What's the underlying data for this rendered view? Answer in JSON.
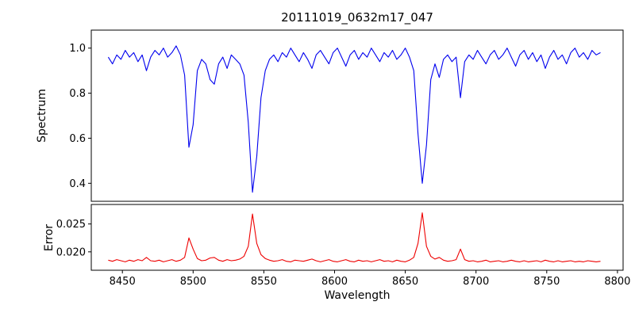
{
  "chart_data": {
    "type": "line",
    "title": "20111019_0632m17_047",
    "xlabel": "Wavelength",
    "xlim": [
      8428,
      8804
    ],
    "xticks": [
      8450,
      8500,
      8550,
      8600,
      8650,
      8700,
      8750,
      8800
    ],
    "grid": false,
    "legend": "none",
    "panels": [
      {
        "name": "spectrum",
        "ylabel": "Spectrum",
        "color": "#0000ee",
        "ylim": [
          0.32,
          1.08
        ],
        "yticks": [
          0.4,
          0.6,
          0.8,
          1.0
        ],
        "ytick_labels": [
          "0.4",
          "0.6",
          "0.8",
          "1.0"
        ]
      },
      {
        "name": "error",
        "ylabel": "Error",
        "color": "#ee0000",
        "ylim": [
          0.0167,
          0.0285
        ],
        "yticks": [
          0.02,
          0.025
        ],
        "ytick_labels": [
          "0.020",
          "0.025"
        ]
      }
    ],
    "absorption_line_centers": [
      8498,
      8542,
      8662
    ],
    "x": [
      8440,
      8443,
      8446,
      8449,
      8452,
      8455,
      8458,
      8461,
      8464,
      8467,
      8470,
      8473,
      8476,
      8479,
      8482,
      8485,
      8488,
      8491,
      8494,
      8497,
      8500,
      8503,
      8506,
      8509,
      8512,
      8515,
      8518,
      8521,
      8524,
      8527,
      8530,
      8533,
      8536,
      8539,
      8542,
      8545,
      8548,
      8551,
      8554,
      8557,
      8560,
      8563,
      8566,
      8569,
      8572,
      8575,
      8578,
      8581,
      8584,
      8587,
      8590,
      8593,
      8596,
      8599,
      8602,
      8605,
      8608,
      8611,
      8614,
      8617,
      8620,
      8623,
      8626,
      8629,
      8632,
      8635,
      8638,
      8641,
      8644,
      8647,
      8650,
      8653,
      8656,
      8659,
      8662,
      8665,
      8668,
      8671,
      8674,
      8677,
      8680,
      8683,
      8686,
      8689,
      8692,
      8695,
      8698,
      8701,
      8704,
      8707,
      8710,
      8713,
      8716,
      8719,
      8722,
      8725,
      8728,
      8731,
      8734,
      8737,
      8740,
      8743,
      8746,
      8749,
      8752,
      8755,
      8758,
      8761,
      8764,
      8767,
      8770,
      8773,
      8776,
      8779,
      8782,
      8785,
      8788
    ],
    "series": [
      {
        "name": "Spectrum",
        "values": [
          0.96,
          0.93,
          0.97,
          0.95,
          0.99,
          0.96,
          0.98,
          0.94,
          0.97,
          0.9,
          0.96,
          0.99,
          0.97,
          1.0,
          0.96,
          0.98,
          1.01,
          0.97,
          0.88,
          0.56,
          0.66,
          0.9,
          0.95,
          0.93,
          0.86,
          0.84,
          0.93,
          0.96,
          0.91,
          0.97,
          0.95,
          0.93,
          0.88,
          0.67,
          0.36,
          0.52,
          0.78,
          0.9,
          0.95,
          0.97,
          0.94,
          0.98,
          0.96,
          1.0,
          0.97,
          0.94,
          0.98,
          0.95,
          0.91,
          0.97,
          0.99,
          0.96,
          0.93,
          0.98,
          1.0,
          0.96,
          0.92,
          0.97,
          0.99,
          0.95,
          0.98,
          0.96,
          1.0,
          0.97,
          0.94,
          0.98,
          0.96,
          0.99,
          0.95,
          0.97,
          1.0,
          0.96,
          0.9,
          0.62,
          0.4,
          0.57,
          0.86,
          0.93,
          0.87,
          0.95,
          0.97,
          0.94,
          0.96,
          0.78,
          0.94,
          0.97,
          0.95,
          0.99,
          0.96,
          0.93,
          0.97,
          0.99,
          0.95,
          0.97,
          1.0,
          0.96,
          0.92,
          0.97,
          0.99,
          0.95,
          0.98,
          0.94,
          0.97,
          0.91,
          0.96,
          0.99,
          0.95,
          0.97,
          0.93,
          0.98,
          1.0,
          0.96,
          0.98,
          0.95,
          0.99,
          0.97,
          0.98
        ]
      },
      {
        "name": "Error",
        "values": [
          0.0185,
          0.0183,
          0.0186,
          0.0184,
          0.0182,
          0.0185,
          0.0183,
          0.0186,
          0.0184,
          0.019,
          0.0184,
          0.0183,
          0.0185,
          0.0182,
          0.0184,
          0.0186,
          0.0183,
          0.0185,
          0.019,
          0.0225,
          0.0205,
          0.0188,
          0.0184,
          0.0185,
          0.0189,
          0.019,
          0.0185,
          0.0183,
          0.0186,
          0.0184,
          0.0185,
          0.0187,
          0.0192,
          0.021,
          0.0268,
          0.0215,
          0.0195,
          0.0188,
          0.0185,
          0.0183,
          0.0184,
          0.0186,
          0.0183,
          0.0182,
          0.0185,
          0.0184,
          0.0183,
          0.0185,
          0.0187,
          0.0184,
          0.0182,
          0.0184,
          0.0186,
          0.0183,
          0.0182,
          0.0184,
          0.0186,
          0.0183,
          0.0182,
          0.0185,
          0.0183,
          0.0184,
          0.0182,
          0.0184,
          0.0186,
          0.0183,
          0.0184,
          0.0182,
          0.0185,
          0.0183,
          0.0182,
          0.0185,
          0.019,
          0.0215,
          0.027,
          0.021,
          0.0192,
          0.0187,
          0.019,
          0.0185,
          0.0183,
          0.0184,
          0.0186,
          0.0205,
          0.0186,
          0.0183,
          0.0184,
          0.0182,
          0.0183,
          0.0185,
          0.0182,
          0.0183,
          0.0184,
          0.0182,
          0.0183,
          0.0185,
          0.0183,
          0.0182,
          0.0184,
          0.0182,
          0.0183,
          0.0184,
          0.0182,
          0.0185,
          0.0183,
          0.0182,
          0.0184,
          0.0182,
          0.0183,
          0.0184,
          0.0182,
          0.0183,
          0.0182,
          0.0184,
          0.0183,
          0.0182,
          0.0183
        ]
      }
    ]
  }
}
